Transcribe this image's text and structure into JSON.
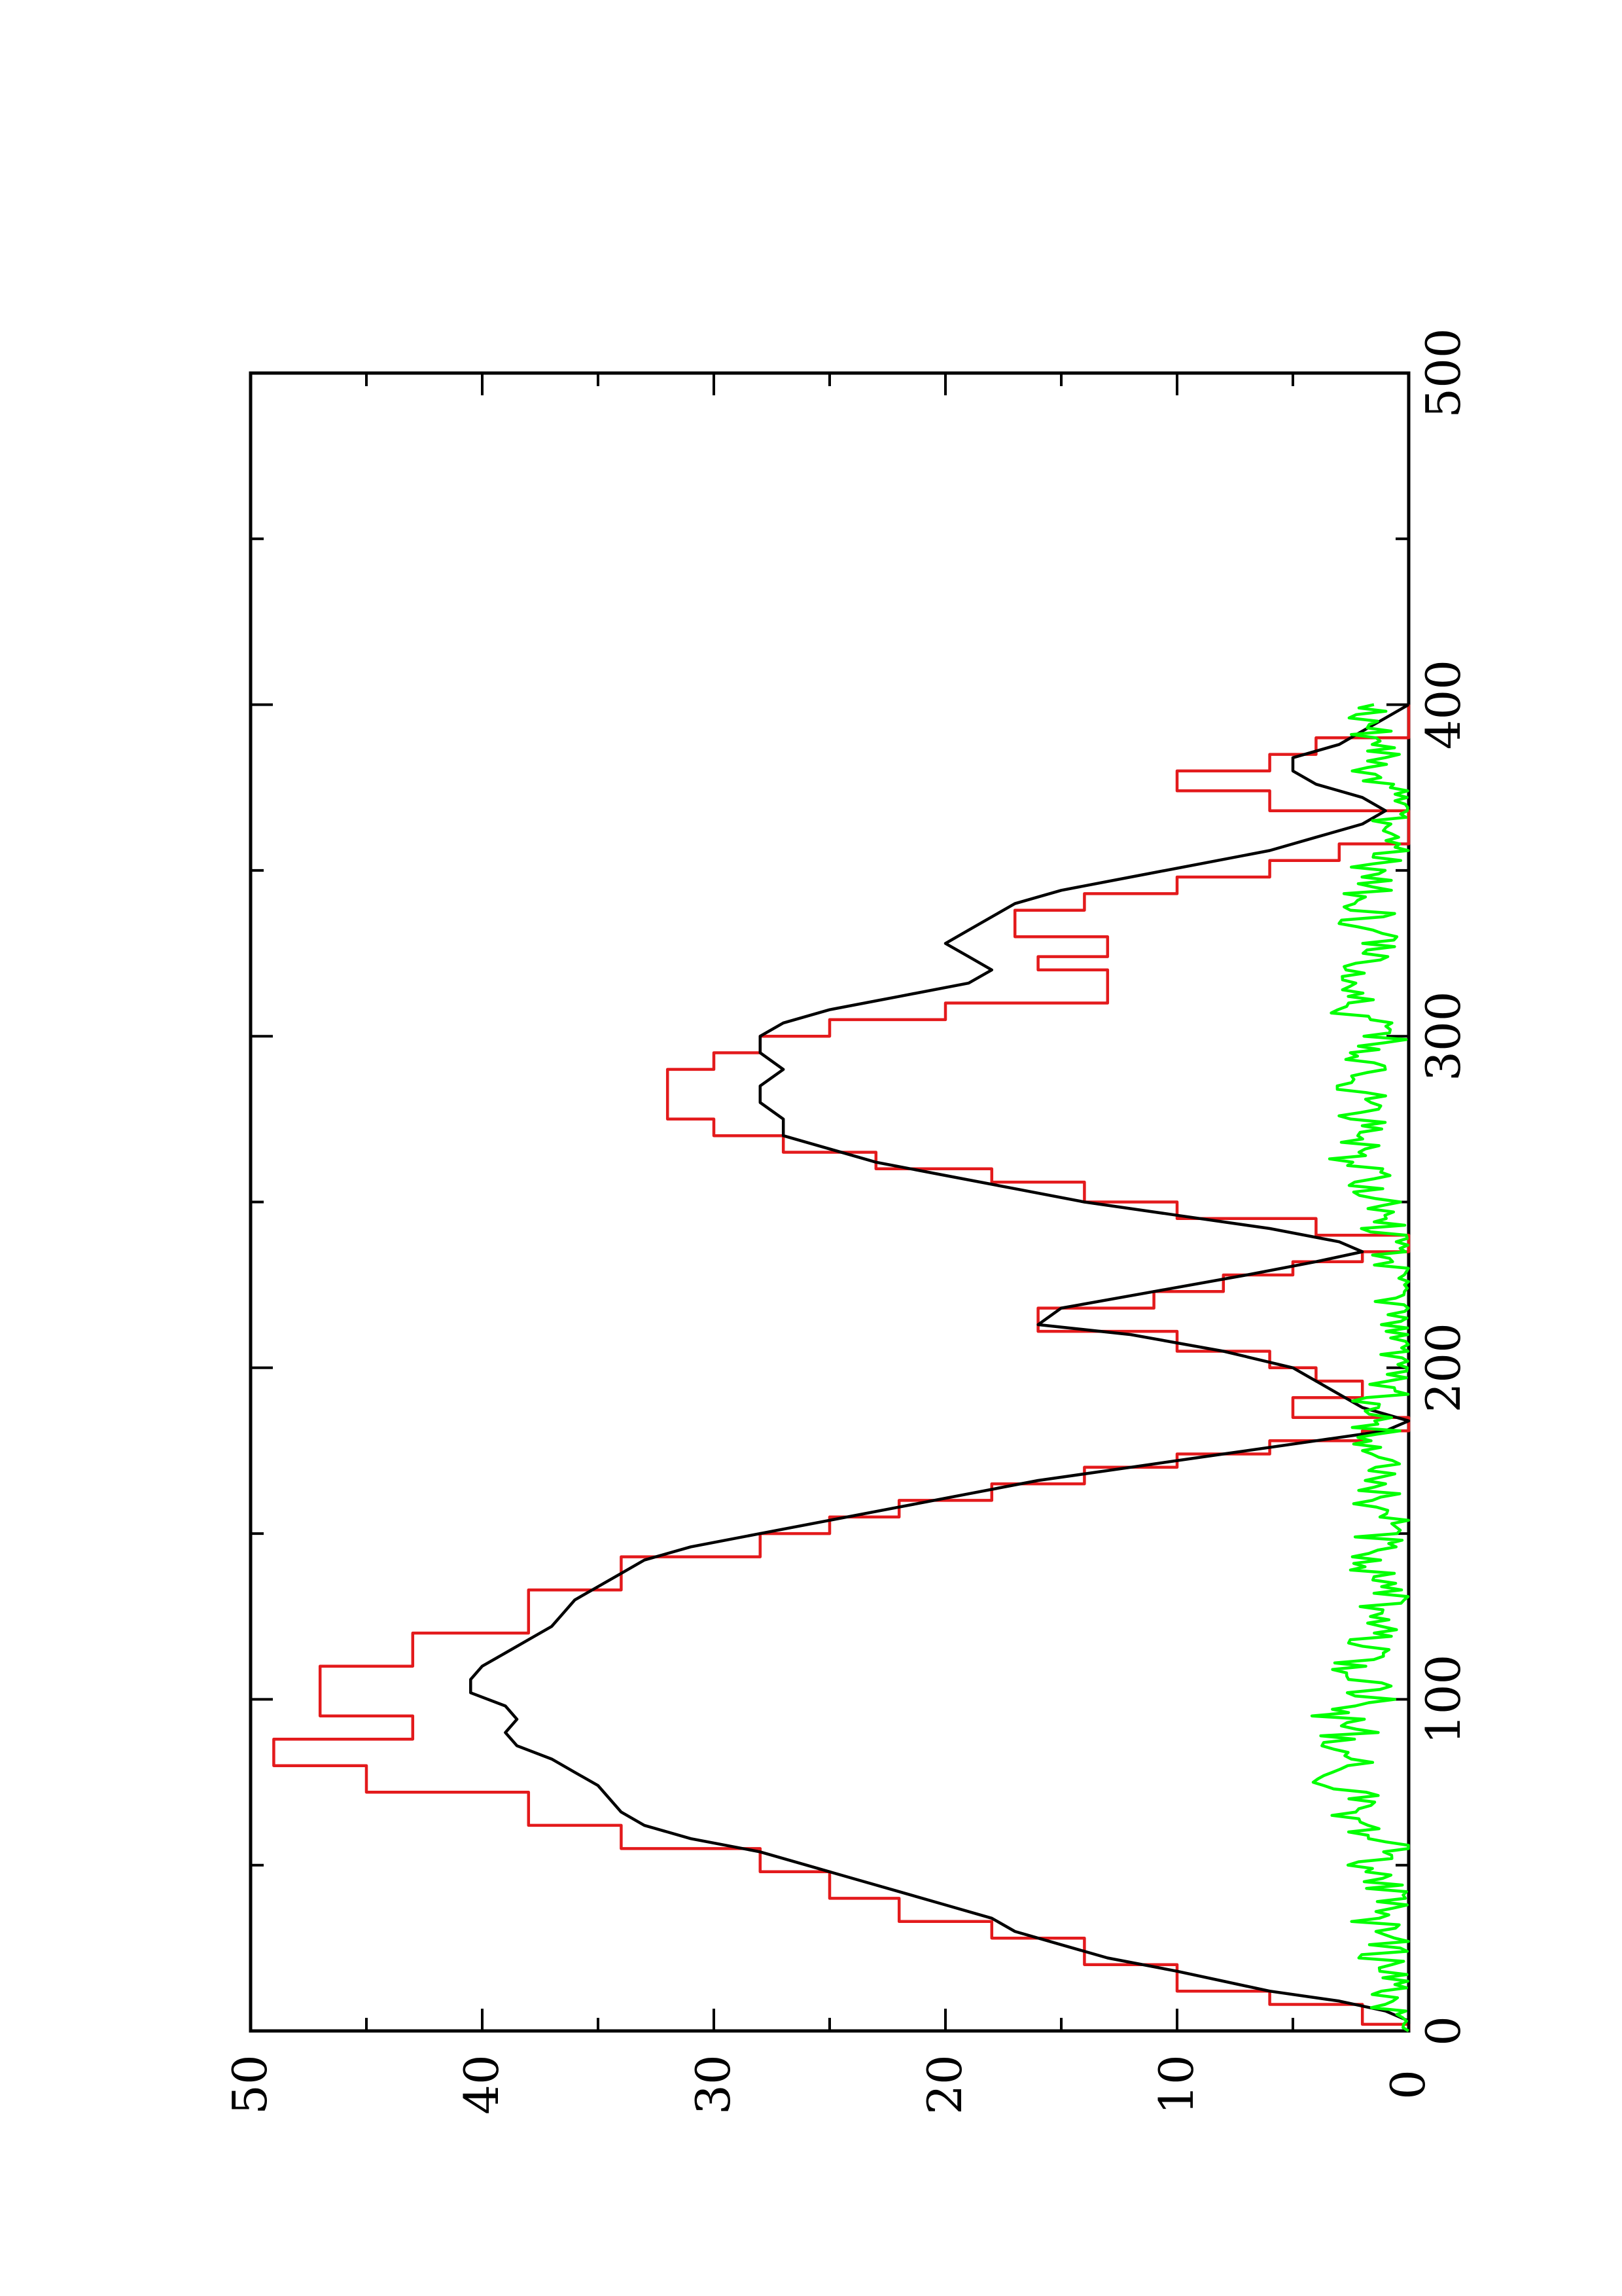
{
  "chart_data": {
    "type": "line",
    "rotated": "90deg-ccw",
    "xlim": [
      0,
      500
    ],
    "ylim": [
      0,
      50
    ],
    "x_ticks": [
      "0",
      "100",
      "200",
      "300",
      "400",
      "500"
    ],
    "x_tick_values": [
      0,
      100,
      200,
      300,
      400,
      500
    ],
    "x_minor_ticks": [
      50,
      150,
      250,
      350,
      450
    ],
    "y_ticks": [
      "0",
      "10",
      "20",
      "30",
      "40",
      "50"
    ],
    "y_tick_values": [
      0,
      10,
      20,
      30,
      40,
      50
    ],
    "y_minor_ticks": [
      5,
      15,
      25,
      35,
      45
    ],
    "grid": false,
    "legend": "none",
    "series": [
      {
        "color": "#e31a1c",
        "step": true,
        "points": [
          [
            0,
            0
          ],
          [
            2,
            0
          ],
          [
            2,
            2
          ],
          [
            8,
            2
          ],
          [
            8,
            6
          ],
          [
            12,
            6
          ],
          [
            12,
            10
          ],
          [
            20,
            10
          ],
          [
            20,
            14
          ],
          [
            28,
            14
          ],
          [
            28,
            18
          ],
          [
            33,
            18
          ],
          [
            33,
            22
          ],
          [
            40,
            22
          ],
          [
            40,
            25
          ],
          [
            48,
            25
          ],
          [
            48,
            28
          ],
          [
            55,
            28
          ],
          [
            55,
            34
          ],
          [
            62,
            34
          ],
          [
            62,
            38
          ],
          [
            72,
            38
          ],
          [
            72,
            45
          ],
          [
            80,
            45
          ],
          [
            80,
            49
          ],
          [
            88,
            49
          ],
          [
            88,
            43
          ],
          [
            95,
            43
          ],
          [
            95,
            47
          ],
          [
            110,
            47
          ],
          [
            110,
            43
          ],
          [
            120,
            43
          ],
          [
            120,
            38
          ],
          [
            133,
            38
          ],
          [
            133,
            34
          ],
          [
            143,
            34
          ],
          [
            143,
            28
          ],
          [
            150,
            28
          ],
          [
            150,
            25
          ],
          [
            155,
            25
          ],
          [
            155,
            22
          ],
          [
            160,
            22
          ],
          [
            160,
            18
          ],
          [
            165,
            18
          ],
          [
            165,
            14
          ],
          [
            170,
            14
          ],
          [
            170,
            10
          ],
          [
            174,
            10
          ],
          [
            174,
            6
          ],
          [
            178,
            6
          ],
          [
            178,
            2
          ],
          [
            181,
            2
          ],
          [
            181,
            0
          ],
          [
            185,
            0
          ],
          [
            185,
            5
          ],
          [
            191,
            5
          ],
          [
            191,
            2
          ],
          [
            196,
            2
          ],
          [
            196,
            4
          ],
          [
            200,
            4
          ],
          [
            200,
            6
          ],
          [
            205,
            6
          ],
          [
            205,
            10
          ],
          [
            211,
            10
          ],
          [
            211,
            16
          ],
          [
            218,
            16
          ],
          [
            218,
            11
          ],
          [
            223,
            11
          ],
          [
            223,
            8
          ],
          [
            228,
            8
          ],
          [
            228,
            5
          ],
          [
            232,
            5
          ],
          [
            232,
            2
          ],
          [
            235,
            2
          ],
          [
            235,
            0
          ],
          [
            240,
            0
          ],
          [
            240,
            4
          ],
          [
            245,
            4
          ],
          [
            245,
            10
          ],
          [
            250,
            10
          ],
          [
            250,
            14
          ],
          [
            256,
            14
          ],
          [
            256,
            18
          ],
          [
            260,
            18
          ],
          [
            260,
            23
          ],
          [
            265,
            23
          ],
          [
            265,
            27
          ],
          [
            270,
            27
          ],
          [
            270,
            30
          ],
          [
            275,
            30
          ],
          [
            275,
            32
          ],
          [
            290,
            32
          ],
          [
            290,
            30
          ],
          [
            295,
            30
          ],
          [
            295,
            28
          ],
          [
            300,
            28
          ],
          [
            300,
            25
          ],
          [
            305,
            25
          ],
          [
            305,
            20
          ],
          [
            310,
            20
          ],
          [
            310,
            13
          ],
          [
            320,
            13
          ],
          [
            320,
            16
          ],
          [
            324,
            16
          ],
          [
            324,
            13
          ],
          [
            330,
            13
          ],
          [
            330,
            17
          ],
          [
            338,
            17
          ],
          [
            338,
            14
          ],
          [
            343,
            14
          ],
          [
            343,
            10
          ],
          [
            348,
            10
          ],
          [
            348,
            6
          ],
          [
            353,
            6
          ],
          [
            353,
            3
          ],
          [
            358,
            3
          ],
          [
            358,
            0
          ],
          [
            368,
            0
          ],
          [
            368,
            6
          ],
          [
            374,
            6
          ],
          [
            374,
            10
          ],
          [
            380,
            10
          ],
          [
            380,
            6
          ],
          [
            385,
            6
          ],
          [
            385,
            4
          ],
          [
            390,
            4
          ],
          [
            390,
            0
          ],
          [
            400,
            0
          ]
        ]
      },
      {
        "color": "#000000",
        "step": false,
        "points": [
          [
            0,
            0
          ],
          [
            3,
            0
          ],
          [
            6,
            1
          ],
          [
            9,
            3
          ],
          [
            12,
            6
          ],
          [
            15,
            8
          ],
          [
            18,
            10
          ],
          [
            22,
            13
          ],
          [
            26,
            15
          ],
          [
            30,
            17
          ],
          [
            34,
            18
          ],
          [
            38,
            20
          ],
          [
            42,
            22
          ],
          [
            46,
            24
          ],
          [
            50,
            26
          ],
          [
            54,
            28
          ],
          [
            58,
            31
          ],
          [
            62,
            33
          ],
          [
            66,
            34
          ],
          [
            70,
            34.5
          ],
          [
            74,
            35
          ],
          [
            78,
            36
          ],
          [
            82,
            37
          ],
          [
            86,
            38.5
          ],
          [
            90,
            39
          ],
          [
            94,
            38.5
          ],
          [
            98,
            39
          ],
          [
            102,
            40.5
          ],
          [
            106,
            40.5
          ],
          [
            110,
            40
          ],
          [
            114,
            39
          ],
          [
            118,
            38
          ],
          [
            122,
            37
          ],
          [
            126,
            36.5
          ],
          [
            130,
            36
          ],
          [
            134,
            35
          ],
          [
            138,
            34
          ],
          [
            142,
            33
          ],
          [
            146,
            31
          ],
          [
            150,
            28
          ],
          [
            154,
            25
          ],
          [
            158,
            22
          ],
          [
            162,
            19
          ],
          [
            166,
            16
          ],
          [
            170,
            12
          ],
          [
            174,
            8
          ],
          [
            178,
            4
          ],
          [
            181,
            1
          ],
          [
            184,
            0
          ],
          [
            188,
            2
          ],
          [
            192,
            3
          ],
          [
            196,
            4
          ],
          [
            200,
            5
          ],
          [
            205,
            8
          ],
          [
            210,
            12
          ],
          [
            213,
            16
          ],
          [
            218,
            15
          ],
          [
            223,
            11
          ],
          [
            228,
            7
          ],
          [
            232,
            4
          ],
          [
            235,
            2
          ],
          [
            238,
            3
          ],
          [
            242,
            6
          ],
          [
            246,
            10
          ],
          [
            250,
            14
          ],
          [
            254,
            17
          ],
          [
            258,
            20
          ],
          [
            262,
            23
          ],
          [
            266,
            25
          ],
          [
            270,
            27
          ],
          [
            275,
            27
          ],
          [
            280,
            28
          ],
          [
            285,
            28
          ],
          [
            290,
            27
          ],
          [
            295,
            28
          ],
          [
            300,
            28
          ],
          [
            304,
            27
          ],
          [
            308,
            25
          ],
          [
            312,
            22
          ],
          [
            316,
            19
          ],
          [
            320,
            18
          ],
          [
            324,
            19
          ],
          [
            328,
            20
          ],
          [
            332,
            19
          ],
          [
            336,
            18
          ],
          [
            340,
            17
          ],
          [
            344,
            15
          ],
          [
            348,
            12
          ],
          [
            352,
            9
          ],
          [
            356,
            6
          ],
          [
            360,
            4
          ],
          [
            364,
            2
          ],
          [
            368,
            1
          ],
          [
            372,
            2
          ],
          [
            376,
            4
          ],
          [
            380,
            5
          ],
          [
            384,
            5
          ],
          [
            388,
            3
          ],
          [
            392,
            2
          ],
          [
            396,
            1
          ],
          [
            400,
            0
          ]
        ]
      },
      {
        "color": "#00ff00",
        "step": false,
        "noisy": true,
        "points": [
          [
            0,
            0
          ],
          [
            5,
            0.5
          ],
          [
            10,
            1
          ],
          [
            15,
            0.5
          ],
          [
            20,
            1.5
          ],
          [
            25,
            0.5
          ],
          [
            30,
            1
          ],
          [
            35,
            1.5
          ],
          [
            40,
            0.5
          ],
          [
            45,
            1
          ],
          [
            50,
            2
          ],
          [
            55,
            1
          ],
          [
            60,
            1.5
          ],
          [
            65,
            2.5
          ],
          [
            70,
            2
          ],
          [
            75,
            3
          ],
          [
            80,
            2.5
          ],
          [
            85,
            3.5
          ],
          [
            90,
            2.5
          ],
          [
            95,
            3
          ],
          [
            100,
            1.5
          ],
          [
            105,
            2
          ],
          [
            110,
            2.5
          ],
          [
            115,
            2
          ],
          [
            120,
            1.5
          ],
          [
            125,
            2
          ],
          [
            130,
            1
          ],
          [
            135,
            1.5
          ],
          [
            140,
            2
          ],
          [
            145,
            1
          ],
          [
            150,
            1.5
          ],
          [
            155,
            1
          ],
          [
            160,
            1.5
          ],
          [
            165,
            1
          ],
          [
            170,
            0.5
          ],
          [
            175,
            1
          ],
          [
            180,
            1.5
          ],
          [
            185,
            1
          ],
          [
            190,
            1.5
          ],
          [
            195,
            0.5
          ],
          [
            200,
            0.5
          ],
          [
            205,
            0
          ],
          [
            210,
            0.5
          ],
          [
            215,
            0
          ],
          [
            220,
            0.5
          ],
          [
            225,
            0
          ],
          [
            230,
            1
          ],
          [
            235,
            0.5
          ],
          [
            240,
            1
          ],
          [
            245,
            1.5
          ],
          [
            250,
            1
          ],
          [
            255,
            1.5
          ],
          [
            260,
            2
          ],
          [
            265,
            2.5
          ],
          [
            270,
            1.5
          ],
          [
            275,
            2
          ],
          [
            280,
            1.5
          ],
          [
            285,
            2.5
          ],
          [
            290,
            2
          ],
          [
            295,
            1.5
          ],
          [
            300,
            1
          ],
          [
            305,
            2
          ],
          [
            310,
            2.5
          ],
          [
            315,
            3
          ],
          [
            320,
            2.5
          ],
          [
            325,
            2
          ],
          [
            330,
            1.5
          ],
          [
            335,
            2
          ],
          [
            340,
            1.5
          ],
          [
            345,
            2
          ],
          [
            350,
            1.5
          ],
          [
            355,
            1
          ],
          [
            360,
            1.5
          ],
          [
            365,
            0.5
          ],
          [
            370,
            1
          ],
          [
            375,
            1
          ],
          [
            380,
            1.5
          ],
          [
            385,
            1
          ],
          [
            390,
            1.5
          ],
          [
            395,
            2
          ],
          [
            400,
            1.5
          ]
        ]
      }
    ]
  }
}
